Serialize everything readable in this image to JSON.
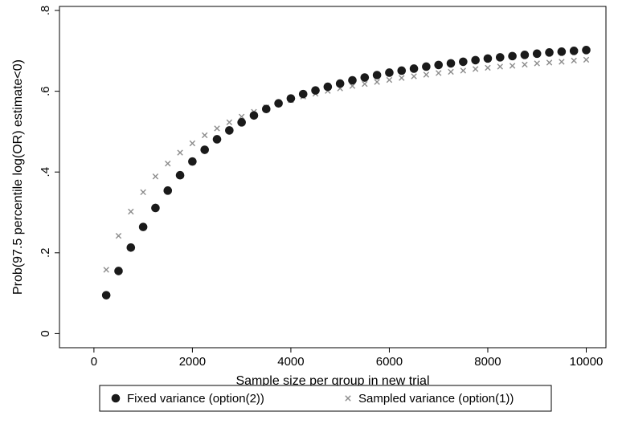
{
  "chart_data": {
    "type": "scatter",
    "title": "",
    "xlabel": "Sample size per group in new trial",
    "ylabel": "Prob(97.5 percentile log(OR) estimate<0)",
    "xlim": [
      0,
      10000
    ],
    "ylim": [
      0,
      0.8
    ],
    "xticks": [
      0,
      2000,
      4000,
      6000,
      8000,
      10000
    ],
    "xtick_labels": [
      "0",
      "2000",
      "4000",
      "6000",
      "8000",
      "10000"
    ],
    "yticks": [
      0,
      0.2,
      0.4,
      0.6,
      0.8
    ],
    "ytick_labels": [
      "0",
      ".2",
      ".4",
      ".6",
      ".8"
    ],
    "grid": false,
    "legend_position": "bottom",
    "x": [
      250,
      500,
      750,
      1000,
      1250,
      1500,
      1750,
      2000,
      2250,
      2500,
      2750,
      3000,
      3250,
      3500,
      3750,
      4000,
      4250,
      4500,
      4750,
      5000,
      5250,
      5500,
      5750,
      6000,
      6250,
      6500,
      6750,
      7000,
      7250,
      7500,
      7750,
      8000,
      8250,
      8500,
      8750,
      9000,
      9250,
      9500,
      9750,
      10000
    ],
    "series": [
      {
        "name": "Fixed variance (option(2))",
        "marker": "circle",
        "color": "#1a1a1a",
        "values": [
          0.095,
          0.155,
          0.213,
          0.264,
          0.311,
          0.354,
          0.392,
          0.426,
          0.455,
          0.481,
          0.503,
          0.523,
          0.54,
          0.556,
          0.57,
          0.582,
          0.593,
          0.602,
          0.611,
          0.619,
          0.627,
          0.634,
          0.64,
          0.646,
          0.651,
          0.656,
          0.661,
          0.665,
          0.669,
          0.673,
          0.677,
          0.681,
          0.684,
          0.687,
          0.69,
          0.693,
          0.696,
          0.698,
          0.7,
          0.702
        ]
      },
      {
        "name": "Sampled variance (option(1))",
        "marker": "x",
        "color": "#8c8c8c",
        "values": [
          0.158,
          0.242,
          0.302,
          0.35,
          0.389,
          0.421,
          0.448,
          0.471,
          0.491,
          0.508,
          0.523,
          0.537,
          0.549,
          0.56,
          0.57,
          0.578,
          0.587,
          0.594,
          0.601,
          0.607,
          0.613,
          0.618,
          0.623,
          0.628,
          0.633,
          0.637,
          0.641,
          0.645,
          0.648,
          0.651,
          0.655,
          0.658,
          0.661,
          0.663,
          0.666,
          0.669,
          0.671,
          0.673,
          0.676,
          0.678
        ]
      }
    ]
  }
}
